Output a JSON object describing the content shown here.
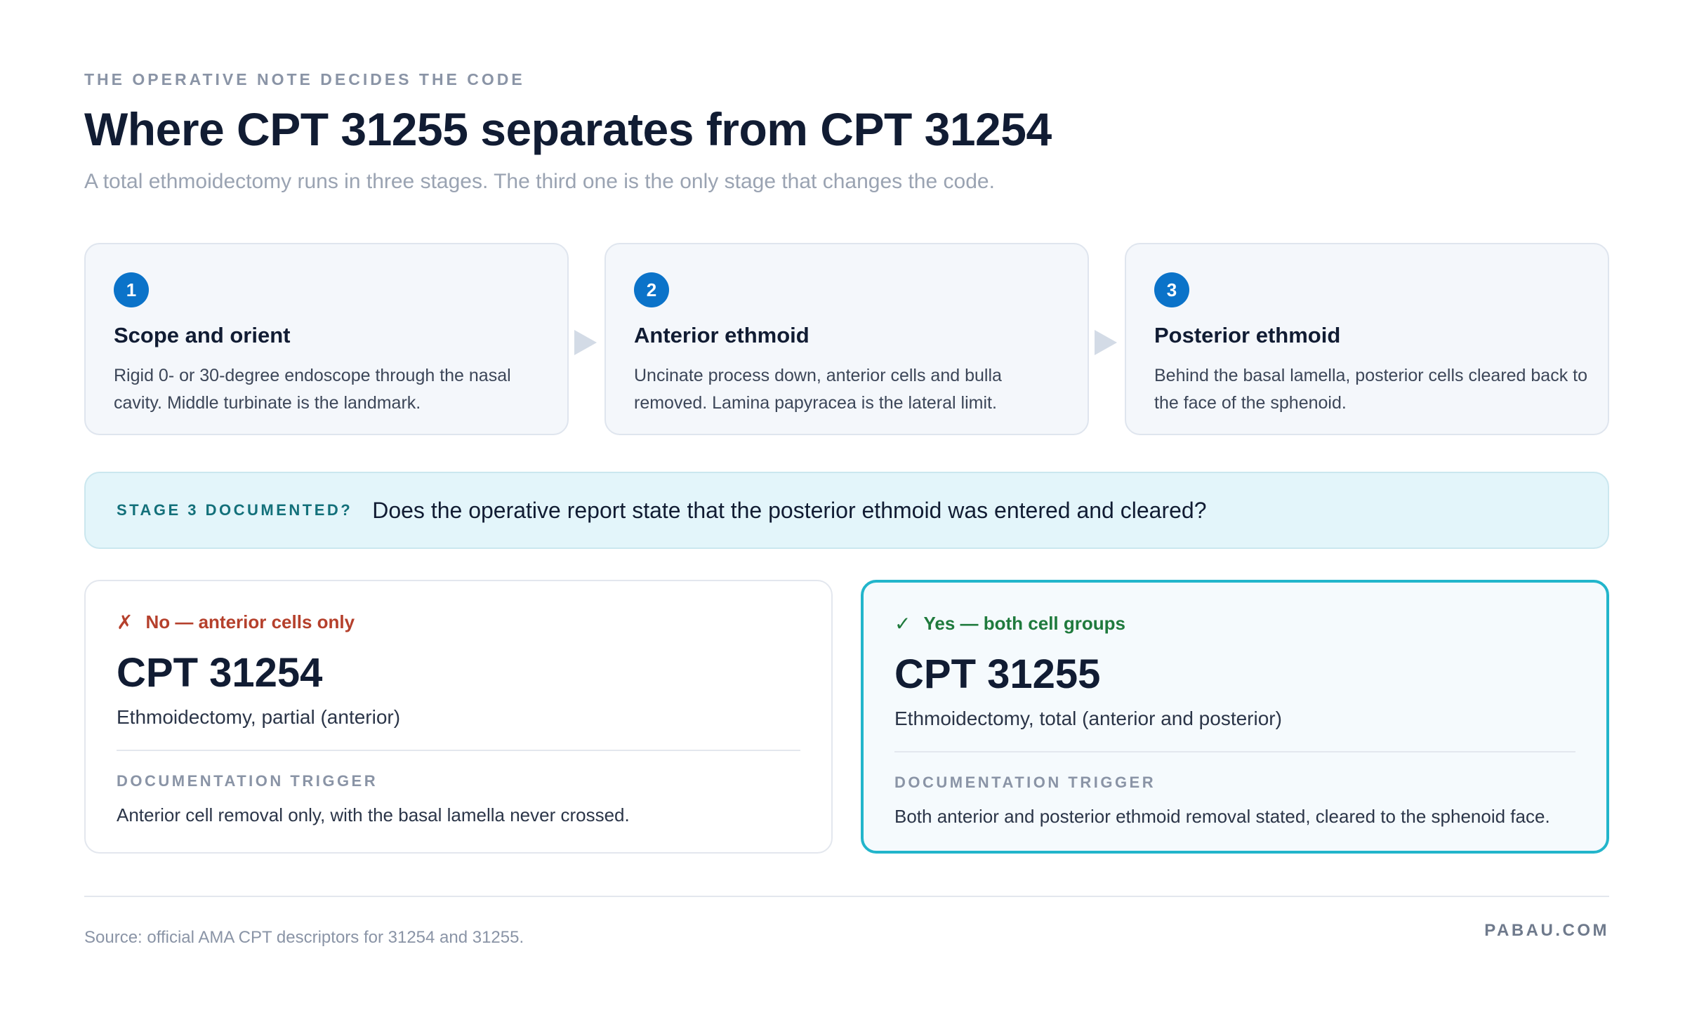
{
  "header": {
    "eyebrow": "THE OPERATIVE NOTE DECIDES THE CODE",
    "title": "Where CPT 31255 separates from CPT 31254",
    "subtitle": "A total ethmoidectomy runs in three stages. The third one is the only stage that changes the code."
  },
  "steps": [
    {
      "number": "1",
      "title": "Scope and orient",
      "description": "Rigid 0- or 30-degree endoscope through the nasal cavity. Middle turbinate is the landmark."
    },
    {
      "number": "2",
      "title": "Anterior ethmoid",
      "description": "Uncinate process down, anterior cells and bulla removed. Lamina papyracea is the lateral limit."
    },
    {
      "number": "3",
      "title": "Posterior ethmoid",
      "description": "Behind the basal lamella, posterior cells cleared back to the face of the sphenoid."
    }
  ],
  "question": {
    "tag": "STAGE 3 DOCUMENTED?",
    "text": "Does the operative report state that the posterior ethmoid was entered and cleared?"
  },
  "outcomes": {
    "no": {
      "mark": "✗",
      "verdict": "No — anterior cells only",
      "code": "CPT 31254",
      "code_description": "Ethmoidectomy, partial (anterior)",
      "trigger_label": "DOCUMENTATION TRIGGER",
      "trigger_text": "Anterior cell removal only, with the basal lamella never crossed."
    },
    "yes": {
      "mark": "✓",
      "verdict": "Yes — both cell groups",
      "code": "CPT 31255",
      "code_description": "Ethmoidectomy, total (anterior and posterior)",
      "trigger_label": "DOCUMENTATION TRIGGER",
      "trigger_text": "Both anterior and posterior ethmoid removal stated, cleared to the sphenoid face."
    }
  },
  "footer": {
    "source": "Source: official AMA CPT descriptors for 31254 and 31255.",
    "brand": "PABAU.COM"
  },
  "colors": {
    "accent_blue": "#0b73c9",
    "accent_teal": "#22b5cb",
    "no_red": "#b5402c",
    "yes_green": "#1f7a3d"
  }
}
